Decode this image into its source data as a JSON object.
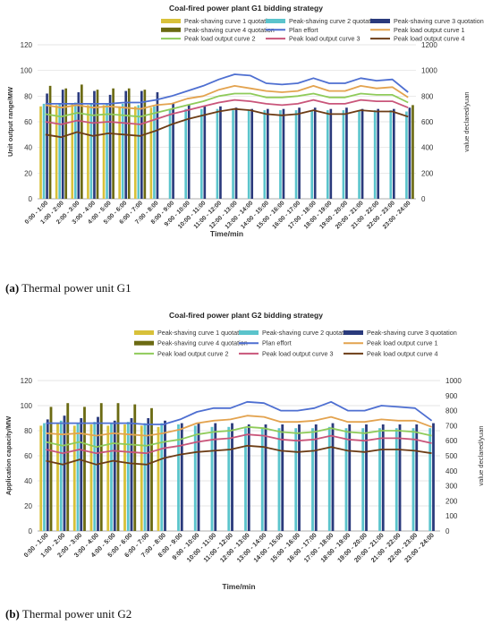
{
  "chart_data": [
    {
      "type": "bar",
      "title": "Coal-fired power plant G1 bidding strategy",
      "caption_letter": "(a)",
      "caption_text": "Thermal power unit G1",
      "xlabel": "Time/min",
      "ylabel": "Unit output range/MW",
      "y2label": "value declared/yuan",
      "ylim": [
        0,
        120
      ],
      "yticks": [
        0,
        20,
        40,
        60,
        80,
        100,
        120
      ],
      "y2lim": [
        0,
        1200
      ],
      "y2ticks": [
        0,
        200,
        400,
        600,
        800,
        1000,
        1200
      ],
      "categories": [
        "0:00 - 1:00",
        "1:00 - 2:00",
        "2:00 - 3:00",
        "3:00 - 4:00",
        "4:00 - 5:00",
        "5:00 - 6:00",
        "6:00 - 7:00",
        "7:00 - 8:00",
        "8:00 - 9:00",
        "9:00 - 10:00",
        "10:00 - 11:00",
        "11:00 - 12:00",
        "12:00 - 13:00",
        "13:00 - 14:00",
        "14:00 - 15:00",
        "15:00 - 16:00",
        "16:00 - 17:00",
        "17:00 - 18:00",
        "18:00 - 19:00",
        "19:00 - 20:00",
        "20:00 - 21:00",
        "21:00 - 22:00",
        "22:00 - 23:00",
        "23:00 - 24:00"
      ],
      "bar_series": [
        {
          "name": "Peak-shaving curve 1 quotation",
          "color": "#d8c13a",
          "values": [
            72,
            73,
            74,
            73,
            73,
            72,
            72,
            71,
            0,
            0,
            0,
            0,
            0,
            0,
            0,
            0,
            0,
            0,
            0,
            0,
            0,
            0,
            0,
            0
          ]
        },
        {
          "name": "Peak-shaving curve 2 quotation",
          "color": "#5bc4cc",
          "values": [
            74,
            74,
            75,
            74,
            74,
            74,
            73,
            72,
            70,
            70,
            70,
            70,
            69,
            69,
            69,
            69,
            69,
            69,
            69,
            69,
            69,
            69,
            69,
            68
          ]
        },
        {
          "name": "Peak-shaving curve 3 quotation",
          "color": "#2a3a7c",
          "values": [
            82,
            85,
            83,
            84,
            81,
            84,
            84,
            83,
            74,
            73,
            72,
            72,
            71,
            70,
            70,
            70,
            71,
            71,
            70,
            71,
            70,
            70,
            70,
            71
          ]
        },
        {
          "name": "Peak-shaving curve 4 quotation",
          "color": "#6b6a12",
          "values": [
            88,
            86,
            89,
            85,
            86,
            86,
            85,
            0,
            0,
            0,
            0,
            0,
            0,
            0,
            0,
            0,
            0,
            0,
            0,
            0,
            0,
            0,
            0,
            73
          ]
        }
      ],
      "line_series": [
        {
          "name": "Plan effort",
          "color": "#4e6fd1",
          "values": [
            74,
            74,
            74,
            74,
            74,
            75,
            75,
            77,
            80,
            84,
            88,
            93,
            97,
            96,
            90,
            89,
            90,
            94,
            90,
            90,
            94,
            92,
            93,
            83
          ]
        },
        {
          "name": "Peak load output curve 1",
          "color": "#e3a34f",
          "values": [
            73,
            71,
            73,
            71,
            72,
            71,
            70,
            73,
            74,
            78,
            80,
            85,
            88,
            86,
            84,
            83,
            84,
            88,
            84,
            84,
            88,
            86,
            87,
            79
          ]
        },
        {
          "name": "Peak load output curve 2",
          "color": "#8fcb5a",
          "values": [
            66,
            64,
            67,
            65,
            66,
            65,
            64,
            67,
            70,
            73,
            76,
            80,
            82,
            82,
            79,
            79,
            80,
            82,
            79,
            79,
            82,
            81,
            81,
            75
          ]
        },
        {
          "name": "Peak load output curve 3",
          "color": "#c9557a",
          "values": [
            60,
            58,
            61,
            59,
            60,
            59,
            58,
            62,
            66,
            69,
            72,
            75,
            77,
            76,
            74,
            73,
            74,
            77,
            74,
            74,
            77,
            76,
            76,
            71
          ]
        },
        {
          "name": "Peak load output curve 4",
          "color": "#6d3d16",
          "values": [
            50,
            48,
            52,
            49,
            51,
            50,
            49,
            53,
            58,
            62,
            65,
            68,
            70,
            69,
            66,
            65,
            66,
            69,
            66,
            66,
            69,
            68,
            68,
            64
          ]
        }
      ]
    },
    {
      "type": "bar",
      "title": "Coal-fired power plant G2 bidding strategy",
      "caption_letter": "(b)",
      "caption_text": "Thermal power unit G2",
      "xlabel": "Time/min",
      "ylabel": "Application capacity/MW",
      "y2label": "value declared/yuan",
      "ylim": [
        0,
        120
      ],
      "yticks": [
        0,
        20,
        40,
        60,
        80,
        100,
        120
      ],
      "y2lim": [
        0,
        1000
      ],
      "y2ticks": [
        0,
        100,
        200,
        300,
        400,
        500,
        600,
        700,
        800,
        900,
        1000
      ],
      "categories": [
        "0:00 - 1:00",
        "1:00 - 2:00",
        "2:00 - 3:00",
        "3:00 - 4:00",
        "4:00 - 5:00",
        "5:00 - 6:00",
        "6:00 - 7:00",
        "7:00 - 8:00",
        "8:00 - 9:00",
        "9:00 - 10:00",
        "10:00 - 11:00",
        "11:00 - 12:00",
        "12:00 - 13:00",
        "13:00 - 14:00",
        "14:00 - 15:00",
        "15:00 - 16:00",
        "16:00 - 17:00",
        "17:00 - 18:00",
        "18:00 - 19:00",
        "19:00 - 20:00",
        "20:00 - 21:00",
        "21:00 - 22:00",
        "22:00 - 23:00",
        "23:00 - 24:00"
      ],
      "bar_series": [
        {
          "name": "Peak-shaving curve 1 quotation",
          "color": "#d8c13a",
          "values": [
            84,
            86,
            84,
            85,
            84,
            85,
            84,
            83,
            0,
            0,
            0,
            0,
            0,
            0,
            0,
            0,
            0,
            0,
            0,
            0,
            0,
            0,
            0,
            0
          ]
        },
        {
          "name": "Peak-shaving curve 2 quotation",
          "color": "#5bc4cc",
          "values": [
            86,
            88,
            86,
            87,
            86,
            87,
            86,
            86,
            85,
            84,
            83,
            83,
            82,
            82,
            82,
            82,
            82,
            83,
            82,
            82,
            82,
            82,
            82,
            82
          ]
        },
        {
          "name": "Peak-shaving curve 3 quotation",
          "color": "#2a3a7c",
          "values": [
            89,
            92,
            90,
            91,
            88,
            90,
            90,
            88,
            86,
            86,
            86,
            86,
            85,
            85,
            85,
            85,
            85,
            86,
            85,
            85,
            85,
            85,
            85,
            86
          ]
        },
        {
          "name": "Peak-shaving curve 4 quotation",
          "color": "#6b6a12",
          "values": [
            99,
            102,
            99,
            102,
            102,
            101,
            98,
            0,
            0,
            0,
            0,
            0,
            0,
            0,
            0,
            0,
            0,
            0,
            0,
            0,
            0,
            0,
            0,
            0
          ]
        }
      ],
      "line_series": [
        {
          "name": "Plan effort",
          "color": "#4e6fd1",
          "values": [
            86,
            86,
            86,
            86,
            86,
            86,
            85,
            85,
            89,
            95,
            98,
            98,
            103,
            102,
            96,
            96,
            98,
            103,
            96,
            96,
            100,
            99,
            98,
            88
          ]
        },
        {
          "name": "Peak load output curve 1",
          "color": "#e3a34f",
          "values": [
            78,
            77,
            78,
            76,
            78,
            77,
            76,
            78,
            81,
            86,
            88,
            89,
            92,
            91,
            87,
            87,
            88,
            91,
            87,
            87,
            89,
            88,
            88,
            83
          ]
        },
        {
          "name": "Peak load output curve 2",
          "color": "#8fcb5a",
          "values": [
            71,
            68,
            71,
            67,
            70,
            69,
            68,
            71,
            73,
            77,
            79,
            80,
            83,
            82,
            79,
            78,
            79,
            82,
            79,
            78,
            80,
            80,
            79,
            76
          ]
        },
        {
          "name": "Peak load output curve 3",
          "color": "#c9557a",
          "values": [
            65,
            62,
            65,
            62,
            64,
            63,
            62,
            66,
            68,
            71,
            73,
            74,
            77,
            76,
            73,
            72,
            73,
            76,
            73,
            72,
            74,
            74,
            73,
            70
          ]
        },
        {
          "name": "Peak load output curve 4",
          "color": "#6d3d16",
          "values": [
            56,
            53,
            57,
            53,
            56,
            54,
            53,
            58,
            61,
            63,
            64,
            65,
            68,
            67,
            64,
            63,
            64,
            67,
            64,
            63,
            65,
            65,
            64,
            62
          ]
        }
      ]
    }
  ]
}
